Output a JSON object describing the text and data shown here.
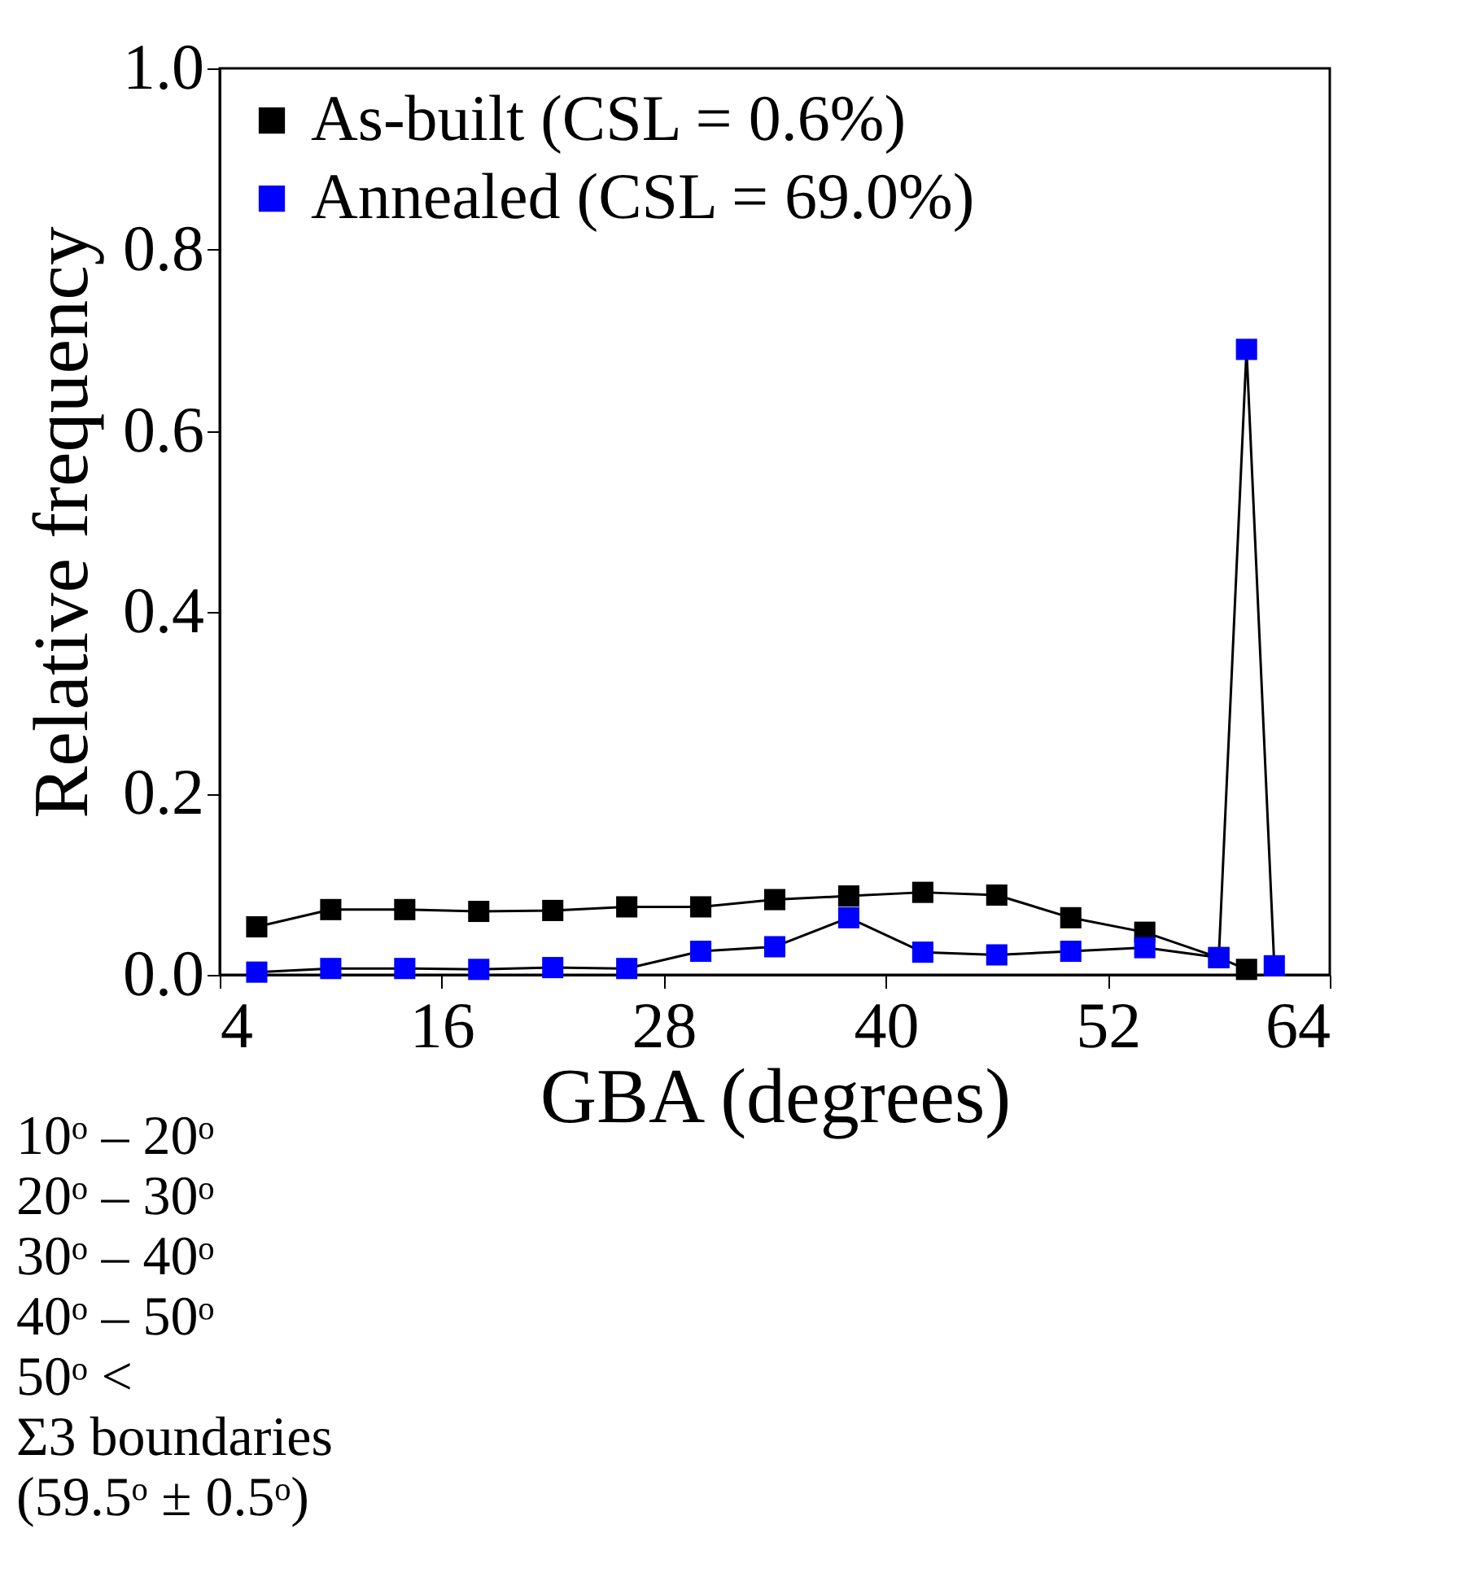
{
  "chart_data": {
    "type": "line",
    "xlabel": "GBA (degrees)",
    "ylabel": "Relative frequency",
    "xlim": [
      4,
      64
    ],
    "xticks": [
      4,
      16,
      28,
      40,
      52,
      64
    ],
    "ylim": [
      0,
      1.0
    ],
    "yticks": [
      {
        "value": 0,
        "label": "0.0"
      },
      0.2,
      0.4,
      0.6,
      0.8,
      {
        "value": 1,
        "label": "1.0"
      }
    ],
    "marker": "square",
    "line_style": "solid",
    "grid": false,
    "legend": "top left",
    "series": [
      {
        "name": "As-built (CSL = 0.6%)",
        "color": "#000000",
        "x": [
          6,
          10,
          14,
          18,
          22,
          26,
          30,
          34,
          38,
          42,
          46,
          50,
          54,
          58,
          59.5
        ],
        "values": [
          0.053,
          0.072,
          0.072,
          0.07,
          0.071,
          0.075,
          0.075,
          0.083,
          0.087,
          0.091,
          0.088,
          0.063,
          0.047,
          0.019,
          0.006
        ]
      },
      {
        "name": "Annealed (CSL = 69.0%)",
        "color": "#0000ff",
        "x": [
          6,
          10,
          14,
          18,
          22,
          26,
          30,
          34,
          38,
          42,
          46,
          50,
          54,
          58,
          59.5,
          61
        ],
        "values": [
          0.003,
          0.007,
          0.007,
          0.006,
          0.008,
          0.007,
          0.026,
          0.031,
          0.063,
          0.025,
          0.022,
          0.026,
          0.03,
          0.019,
          0.69,
          0.01
        ]
      }
    ],
    "annotations": [
      "10ᵒ – 20ᵒ",
      "20ᵒ – 30ᵒ",
      "30ᵒ – 40ᵒ",
      "40ᵒ – 50ᵒ",
      "50ᵒ <",
      "Σ3 boundaries",
      "(59.5ᵒ ± 0.5ᵒ)"
    ]
  }
}
